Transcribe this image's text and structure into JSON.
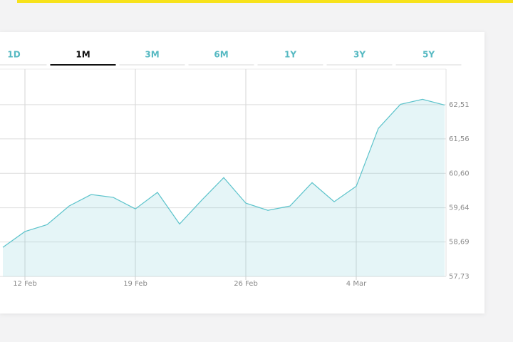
{
  "tabs": {
    "items": [
      "1D",
      "1M",
      "3M",
      "6M",
      "1Y",
      "3Y",
      "5Y"
    ],
    "active": 1
  },
  "chart_data": {
    "type": "area",
    "categories": [
      null,
      "12 Feb",
      null,
      null,
      null,
      null,
      "19 Feb",
      null,
      null,
      null,
      null,
      "26 Feb",
      null,
      null,
      null,
      null,
      "4 Mar",
      null,
      null,
      null,
      null
    ],
    "series": [
      {
        "color": "#5cc3cb",
        "values": [
          58.54,
          58.98,
          59.17,
          59.69,
          60.01,
          59.93,
          59.61,
          60.07,
          59.19,
          59.85,
          60.48,
          59.77,
          59.57,
          59.69,
          60.34,
          59.81,
          60.24,
          61.85,
          62.52,
          62.66,
          62.5
        ]
      }
    ],
    "ylim": [
      57.73,
      63.5
    ],
    "yticks": [
      {
        "value": 57.73,
        "label": "57,73"
      },
      {
        "value": 58.69,
        "label": "58,69"
      },
      {
        "value": 59.64,
        "label": "59,64"
      },
      {
        "value": 60.6,
        "label": "60,60"
      },
      {
        "value": 61.56,
        "label": "61,56"
      },
      {
        "value": 62.51,
        "label": "62,51"
      }
    ],
    "grid": true
  }
}
